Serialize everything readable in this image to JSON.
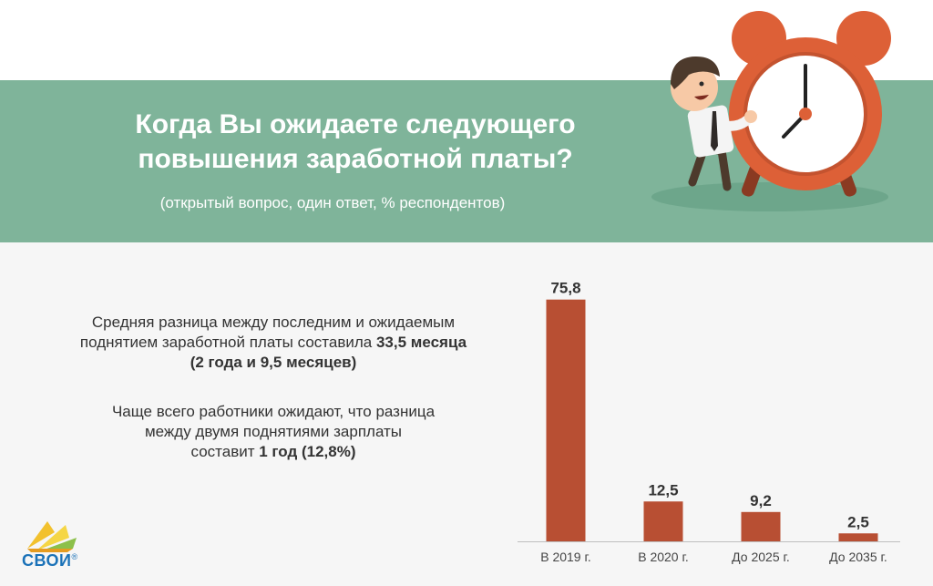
{
  "header": {
    "title_line1": "Когда Вы ожидаете следующего",
    "title_line2": "повышения заработной платы?",
    "subtitle": "(открытый вопрос, один ответ, % респондентов)"
  },
  "notes": {
    "note1_line1": "Средняя разница между последним и ожидаемым",
    "note1_line2_text": "поднятием заработной платы составила ",
    "note1_line2_bold": "33,5 месяца",
    "note1_line3_bold": "(2 года и 9,5 месяцев)",
    "note2_line1": "Чаще всего работники ожидают, что разница",
    "note2_line2": "между двумя поднятиями зарплаты",
    "note2_line3_text": "составит ",
    "note2_line3_bold": "1 год (12,8%)"
  },
  "logo": {
    "name": "СВОИ",
    "mark": "®"
  },
  "colors": {
    "banner": "#7fb49a",
    "bar": "#b84f33",
    "clock": "#dd6037"
  },
  "chart_data": {
    "type": "bar",
    "categories": [
      "В 2019 г.",
      "В 2020 г.",
      "До 2025 г.",
      "До 2035 г."
    ],
    "values": [
      75.8,
      12.5,
      9.2,
      2.5
    ],
    "value_labels": [
      "75,8",
      "12,5",
      "9,2",
      "2,5"
    ],
    "title": "",
    "xlabel": "",
    "ylabel": "",
    "ylim": [
      0,
      80
    ],
    "grid": false,
    "legend": "none"
  }
}
